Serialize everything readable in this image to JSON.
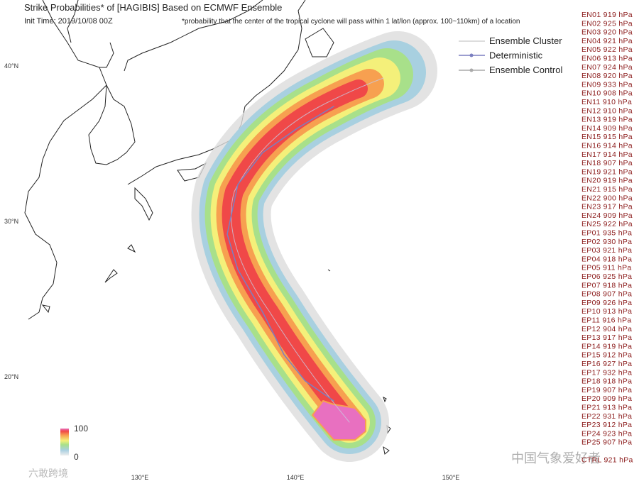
{
  "header": {
    "title": "Strike Probabilities* of [HAGIBIS] Based on ECMWF Ensemble",
    "init_time": "Init Time: 2019/10/08 00Z",
    "footnote": "*probability that the center of the tropical cyclone will pass within 1 lat/lon (approx. 100~110km) of a location"
  },
  "legend": [
    "Ensemble Cluster",
    "Deterministic",
    "Ensemble Control"
  ],
  "lat_ticks": [
    {
      "value": 40,
      "label": "40°N"
    },
    {
      "value": 30,
      "label": "30°N"
    },
    {
      "value": 20,
      "label": "20°N"
    }
  ],
  "lon_ticks": [
    {
      "value": 130,
      "label": "130°E"
    },
    {
      "value": 140,
      "label": "140°E"
    },
    {
      "value": 150,
      "label": "150°E"
    }
  ],
  "colorbar": {
    "max_label": "100",
    "min_label": "0"
  },
  "members": [
    "EN01 919 hPa",
    "EN02 925 hPa",
    "EN03 920 hPa",
    "EN04 921 hPa",
    "EN05 922 hPa",
    "EN06 913 hPa",
    "EN07 924 hPa",
    "EN08 920 hPa",
    "EN09 933 hPa",
    "EN10 908 hPa",
    "EN11 910 hPa",
    "EN12 910 hPa",
    "EN13 919 hPa",
    "EN14 909 hPa",
    "EN15 915 hPa",
    "EN16 914 hPa",
    "EN17 914 hPa",
    "EN18 907 hPa",
    "EN19 921 hPa",
    "EN20 919 hPa",
    "EN21 915 hPa",
    "EN22 900 hPa",
    "EN23 917 hPa",
    "EN24 909 hPa",
    "EN25 922 hPa",
    "EP01 935 hPa",
    "EP02 930 hPa",
    "EP03 921 hPa",
    "EP04 918 hPa",
    "EP05 911 hPa",
    "EP06 925 hPa",
    "EP07 918 hPa",
    "EP08 907 hPa",
    "EP09 926 hPa",
    "EP10 913 hPa",
    "EP11 916 hPa",
    "EP12 904 hPa",
    "EP13 917 hPa",
    "EP14 919 hPa",
    "EP15 912 hPa",
    "EP16 927 hPa",
    "EP17 932 hPa",
    "EP18 918 hPa",
    "EP19 907 hPa",
    "EP20 909 hPa",
    "EP21 913 hPa",
    "EP22 931 hPa",
    "EP23 912 hPa",
    "EP24 923 hPa",
    "EP25 907 hPa",
    "CTRL 921 hPa"
  ],
  "watermarks": [
    "中国气象爱好者",
    "六敢跨境"
  ]
}
